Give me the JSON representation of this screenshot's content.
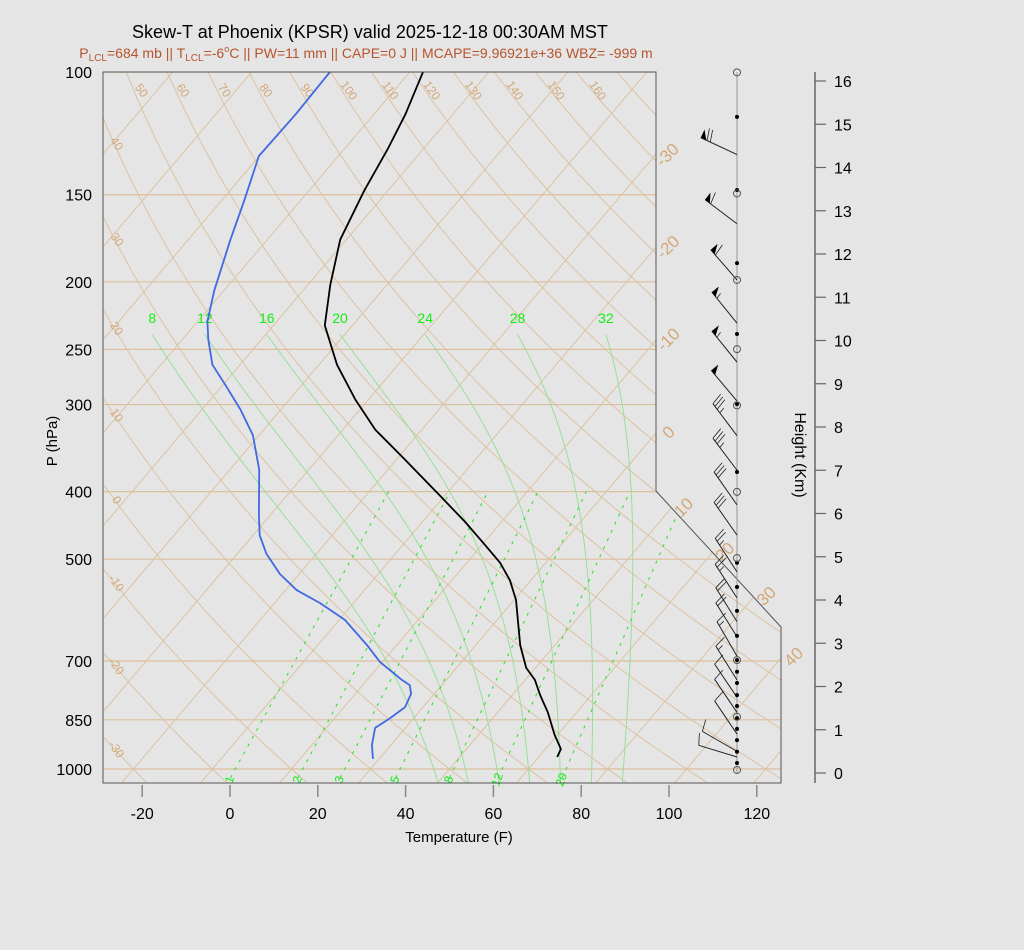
{
  "title": "Skew-T at Phoenix (KPSR) valid 2025-12-18 00:30AM MST",
  "subtitle": {
    "p_lcl_symbol": "P",
    "p_lcl_sub": "LCL",
    "p_lcl_value": "=684 mb || ",
    "t_lcl_symbol": "T",
    "t_lcl_sub": "LCL",
    "t_lcl_value": "=-6",
    "degree_sup": "o",
    "rest": "C || PW=11 mm || CAPE=0 J || MCAPE=9.96921e+36 WBZ= -999 m"
  },
  "colors": {
    "background": "#e5e5e5",
    "grid_tan": "#dcbf9c",
    "grid_label_tan": "#d2a878",
    "moist_green": "#8fe08f",
    "mixing_green": "#22e022",
    "label_green": "#11ee11",
    "temperature": "#000000",
    "dewpoint": "#4169e1",
    "subtitle": "#b5542d"
  },
  "chart_data": {
    "type": "line",
    "subtype": "skew-t log-p",
    "xlabel": "Temperature (F)",
    "ylabel": "P (hPa)",
    "y2label": "Height (Km)",
    "xlim": [
      -29,
      125
    ],
    "ylim": [
      1047,
      100
    ],
    "y_scale": "log",
    "x_ticks": [
      "-20",
      "0",
      "20",
      "40",
      "60",
      "80",
      "100",
      "120"
    ],
    "y_ticks": [
      "100",
      "150",
      "200",
      "250",
      "300",
      "400",
      "500",
      "700",
      "850",
      "1000"
    ],
    "y2_ticks": [
      "0",
      "1",
      "2",
      "3",
      "4",
      "5",
      "6",
      "7",
      "8",
      "9",
      "10",
      "11",
      "12",
      "13",
      "14",
      "15",
      "16"
    ],
    "isotherm_labels_c": [
      "-30",
      "-20",
      "-10",
      "0",
      "10",
      "20",
      "30",
      "40"
    ],
    "dry_adiabat_labels_c": [
      "-30",
      "-20",
      "-10",
      "0",
      "10",
      "20",
      "30",
      "40",
      "50",
      "60",
      "70",
      "80",
      "90",
      "100",
      "110",
      "120",
      "130",
      "140",
      "150",
      "160"
    ],
    "moist_adiabat_labels_c": [
      "8",
      "12",
      "16",
      "20",
      "24",
      "28",
      "32"
    ],
    "mixing_ratio_labels_gkg": [
      "1",
      "2",
      "3",
      "5",
      "8",
      "12",
      "20"
    ],
    "series": [
      {
        "name": "temperature",
        "pressure_hpa": [
          961,
          936,
          894,
          829,
          783,
          745,
          716,
          664,
          572,
          536,
          506,
          477,
          442,
          405,
          360,
          326,
          295,
          263,
          231,
          202,
          174,
          148,
          129,
          115,
          100
        ],
        "temp_f": [
          72.2,
          71.5,
          67.4,
          61.4,
          56.3,
          52.2,
          47.9,
          42.1,
          32.4,
          27.2,
          21.6,
          14.7,
          5.7,
          -5.2,
          -20.0,
          -32.6,
          -43.0,
          -53.9,
          -64.3,
          -70.9,
          -77.4,
          -81.4,
          -84.1,
          -86.8,
          -91.0
        ]
      },
      {
        "name": "dewpoint",
        "pressure_hpa": [
          967,
          924,
          873,
          846,
          815,
          780,
          758,
          745,
          702,
          664,
          611,
          578,
          554,
          525,
          491,
          462,
          432,
          372,
          332,
          305,
          281,
          263,
          242,
          228,
          206,
          174,
          153,
          132,
          115,
          100
        ],
        "temp_f": [
          30.6,
          27.7,
          25.1,
          26.6,
          27.9,
          26.7,
          24.7,
          21.9,
          13.4,
          7.2,
          -2.7,
          -11.6,
          -19.4,
          -26.4,
          -33.4,
          -38.5,
          -42.6,
          -51.3,
          -59.4,
          -67.2,
          -75.5,
          -82.3,
          -88.1,
          -91.8,
          -96.2,
          -102.4,
          -106.8,
          -112.1,
          -111.8,
          -112.2
        ]
      }
    ],
    "wind_barbs": {
      "height_km": [
        14.3,
        12.7,
        11.4,
        10.4,
        9.5,
        8.6,
        7.8,
        7.0,
        6.2,
        5.5,
        4.65,
        4.05,
        3.5,
        3.15,
        2.7,
        2.15,
        1.75,
        1.4,
        0.9,
        0.5,
        0.37
      ],
      "direction_deg": [
        295,
        307,
        319,
        321,
        321,
        320,
        323,
        323,
        325,
        325,
        327,
        327,
        328,
        328,
        330,
        328,
        326,
        326,
        326,
        300,
        287
      ],
      "speed_kt": [
        70,
        60,
        60,
        55,
        55,
        50,
        35,
        35,
        30,
        30,
        25,
        25,
        20,
        20,
        15,
        15,
        10,
        10,
        10,
        10,
        10
      ]
    },
    "staff_markers": {
      "filled_km": [
        15.17,
        13.48,
        11.79,
        10.15,
        8.53,
        6.96,
        4.86,
        4.3,
        3.75,
        3.17,
        2.61,
        2.34,
        2.08,
        1.8,
        1.55,
        1.27,
        1.02,
        0.76,
        0.49,
        0.23
      ],
      "open_km": [
        16.2,
        13.4,
        11.4,
        9.8,
        8.5,
        6.5,
        4.97,
        2.61,
        1.3,
        0.07
      ]
    }
  }
}
